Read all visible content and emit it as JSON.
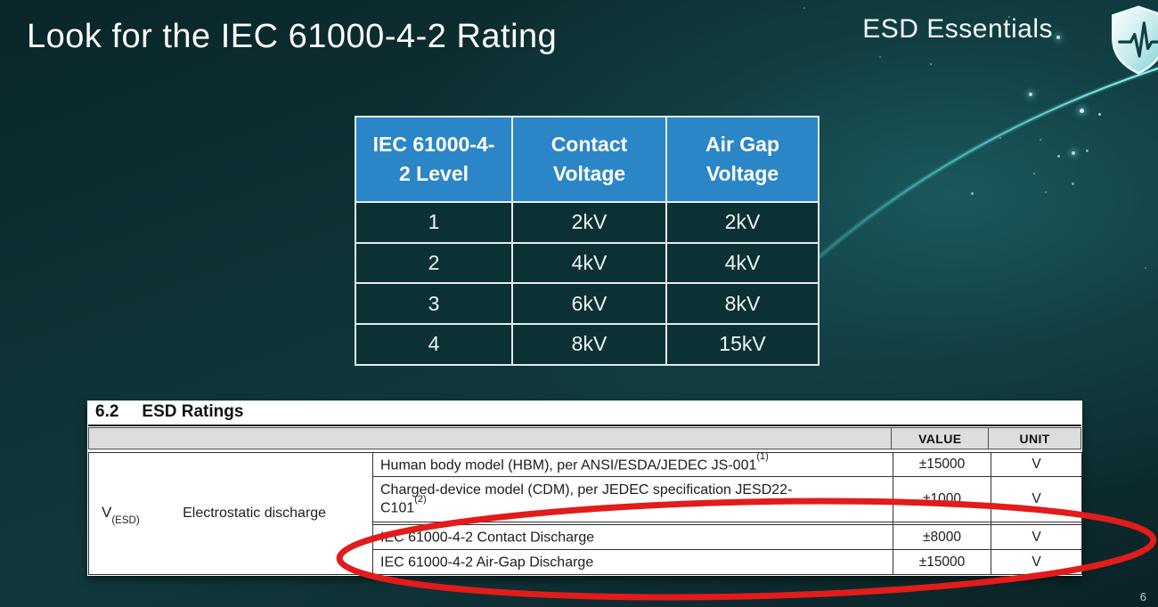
{
  "slide": {
    "title": "Look for the IEC 61000-4-2 Rating",
    "page_number": "6"
  },
  "brand": {
    "name": "ESD Essentials",
    "logo": "shield-pulse-icon"
  },
  "iec_table": {
    "headers": [
      "IEC 61000-4-2 Level",
      "Contact Voltage",
      "Air Gap Voltage"
    ],
    "rows": [
      [
        "1",
        "2kV",
        "2kV"
      ],
      [
        "2",
        "4kV",
        "4kV"
      ],
      [
        "3",
        "6kV",
        "8kV"
      ],
      [
        "4",
        "8kV",
        "15kV"
      ]
    ],
    "header_bg": "#2b86c7"
  },
  "datasheet": {
    "section_number": "6.2",
    "section_title": "ESD Ratings",
    "value_header": "VALUE",
    "unit_header": "UNIT",
    "parameter_symbol": "V",
    "parameter_symbol_sub": "(ESD)",
    "parameter_name": "Electrostatic discharge",
    "rows": [
      {
        "description": "Human body model (HBM), per ANSI/ESDA/JEDEC JS-001",
        "sup": "(1)",
        "value": "±15000",
        "unit": "V"
      },
      {
        "description": "Charged-device model (CDM), per JEDEC specification JESD22-\nC101",
        "sup": "(2)",
        "value": "±1000",
        "unit": "V"
      },
      {
        "description": "IEC 61000-4-2 Contact Discharge",
        "sup": "",
        "value": "±8000",
        "unit": "V"
      },
      {
        "description": "IEC 61000-4-2 Air-Gap Discharge",
        "sup": "",
        "value": "±15000",
        "unit": "V"
      }
    ],
    "highlight_color": "#e21b1b"
  }
}
